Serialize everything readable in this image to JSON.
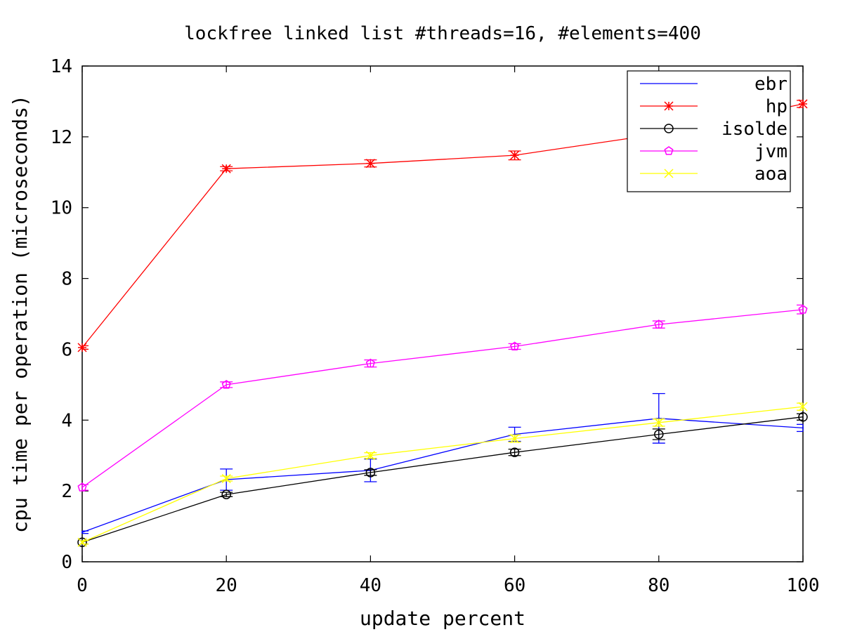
{
  "chart_data": {
    "type": "line",
    "title": "lockfree linked list #threads=16, #elements=400",
    "xlabel": "update percent",
    "ylabel": "cpu time per operation (microseconds)",
    "xlim": [
      0,
      100
    ],
    "ylim": [
      0,
      14
    ],
    "x_ticks": [
      0,
      20,
      40,
      60,
      80,
      100
    ],
    "y_ticks": [
      0,
      2,
      4,
      6,
      8,
      10,
      12,
      14
    ],
    "grid": false,
    "legend_position": "top-right",
    "x": [
      0,
      20,
      40,
      60,
      80,
      100
    ],
    "series": [
      {
        "name": "ebr",
        "color": "#0000ff",
        "marker": "none",
        "values": [
          0.83,
          2.32,
          2.58,
          3.6,
          4.05,
          3.78
        ],
        "error": [
          [
            0.8,
            0.87
          ],
          [
            2.02,
            2.62
          ],
          [
            2.26,
            2.9
          ],
          [
            3.4,
            3.8
          ],
          [
            3.35,
            4.75
          ],
          [
            3.68,
            3.88
          ]
        ]
      },
      {
        "name": "hp",
        "color": "#ff0000",
        "marker": "star",
        "values": [
          6.05,
          11.1,
          11.25,
          11.48,
          12.08,
          12.93
        ],
        "error": [
          [
            6.0,
            6.1
          ],
          [
            11.04,
            11.16
          ],
          [
            11.15,
            11.35
          ],
          [
            11.35,
            11.6
          ],
          [
            11.95,
            12.2
          ],
          [
            12.83,
            13.03
          ]
        ]
      },
      {
        "name": "isolde",
        "color": "#000000",
        "marker": "circle",
        "values": [
          0.55,
          1.9,
          2.52,
          3.09,
          3.6,
          4.09
        ],
        "error": [
          [
            0.5,
            0.6
          ],
          [
            1.84,
            1.96
          ],
          [
            2.44,
            2.6
          ],
          [
            3.0,
            3.18
          ],
          [
            3.45,
            3.75
          ],
          [
            4.0,
            4.18
          ]
        ]
      },
      {
        "name": "jvm",
        "color": "#ff00ff",
        "marker": "pentagon",
        "values": [
          2.1,
          5.0,
          5.6,
          6.08,
          6.7,
          7.12
        ],
        "error": [
          [
            2.02,
            2.18
          ],
          [
            4.92,
            5.08
          ],
          [
            5.5,
            5.7
          ],
          [
            6.0,
            6.16
          ],
          [
            6.6,
            6.8
          ],
          [
            7.0,
            7.25
          ]
        ]
      },
      {
        "name": "aoa",
        "color": "#ffff00",
        "marker": "x",
        "values": [
          0.55,
          2.35,
          3.0,
          3.48,
          3.93,
          4.38
        ],
        "error": [
          [
            0.5,
            0.6
          ],
          [
            2.28,
            2.42
          ],
          [
            2.92,
            3.08
          ],
          [
            3.38,
            3.58
          ],
          [
            3.83,
            4.03
          ],
          [
            4.28,
            4.48
          ]
        ]
      }
    ]
  }
}
